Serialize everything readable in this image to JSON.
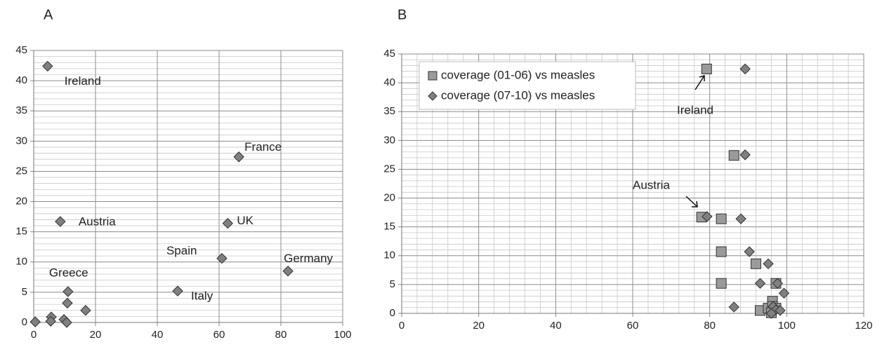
{
  "chart_data": [
    {
      "type": "scatter",
      "title": "A",
      "xlim": [
        0,
        100
      ],
      "xticks": [
        0,
        20,
        40,
        60,
        80,
        100
      ],
      "ylim": [
        0,
        45
      ],
      "yticks": [
        0,
        5,
        10,
        15,
        20,
        25,
        30,
        35,
        40,
        45
      ],
      "grid": true,
      "minor_grid": "y",
      "series": [
        {
          "color": "#808080",
          "marker": "diamond",
          "x": [
            4.5,
            66.4,
            8.6,
            62.8,
            60.9,
            82.3,
            46.6,
            11.1,
            10.9,
            16.8,
            5.7,
            9.8,
            0.5,
            5.5,
            10.7
          ],
          "values": [
            42.4,
            27.4,
            16.7,
            16.4,
            10.6,
            8.5,
            5.2,
            5.1,
            3.2,
            2.0,
            0.9,
            0.5,
            0.1,
            0.2,
            0.0
          ],
          "labels": [
            "Ireland",
            "France",
            "Austria",
            "UK",
            "Spain",
            "Germany",
            "Italy",
            "Greece",
            null,
            null,
            null,
            null,
            null,
            null,
            null
          ]
        }
      ]
    },
    {
      "type": "scatter",
      "title": "B",
      "xlim": [
        0,
        120
      ],
      "xticks": [
        0,
        20,
        40,
        60,
        80,
        100,
        120
      ],
      "ylim": [
        0,
        45
      ],
      "yticks": [
        0,
        5,
        10,
        15,
        20,
        25,
        30,
        35,
        40,
        45
      ],
      "grid": true,
      "minor_grid": "both",
      "legend": "top-left",
      "annotations": [
        "Ireland",
        "Austria"
      ],
      "series": [
        {
          "name": "coverage (01-06) vs measles",
          "color": "#9a9a9a",
          "marker": "square",
          "x": [
            79.2,
            86.3,
            77.9,
            83.0,
            83.0,
            92.0,
            97.2,
            83.0,
            93.1,
            95.2,
            96.3,
            96.3,
            96.0,
            97.2
          ],
          "values": [
            42.4,
            27.4,
            16.7,
            16.4,
            10.7,
            8.6,
            5.2,
            5.2,
            0.5,
            0.9,
            2.1,
            1.2,
            0.1,
            0.9
          ]
        },
        {
          "name": "coverage (07-10) vs measles",
          "color": "#808080",
          "marker": "diamond",
          "x": [
            89.2,
            89.2,
            79.3,
            88.1,
            90.3,
            95.2,
            93.1,
            99.3,
            97.6,
            86.3,
            96.5,
            97.2,
            98.3,
            96.0
          ],
          "values": [
            42.4,
            27.5,
            16.8,
            16.4,
            10.7,
            8.6,
            5.2,
            3.5,
            5.2,
            1.1,
            1.2,
            0.6,
            0.5,
            0.0
          ]
        }
      ]
    }
  ]
}
